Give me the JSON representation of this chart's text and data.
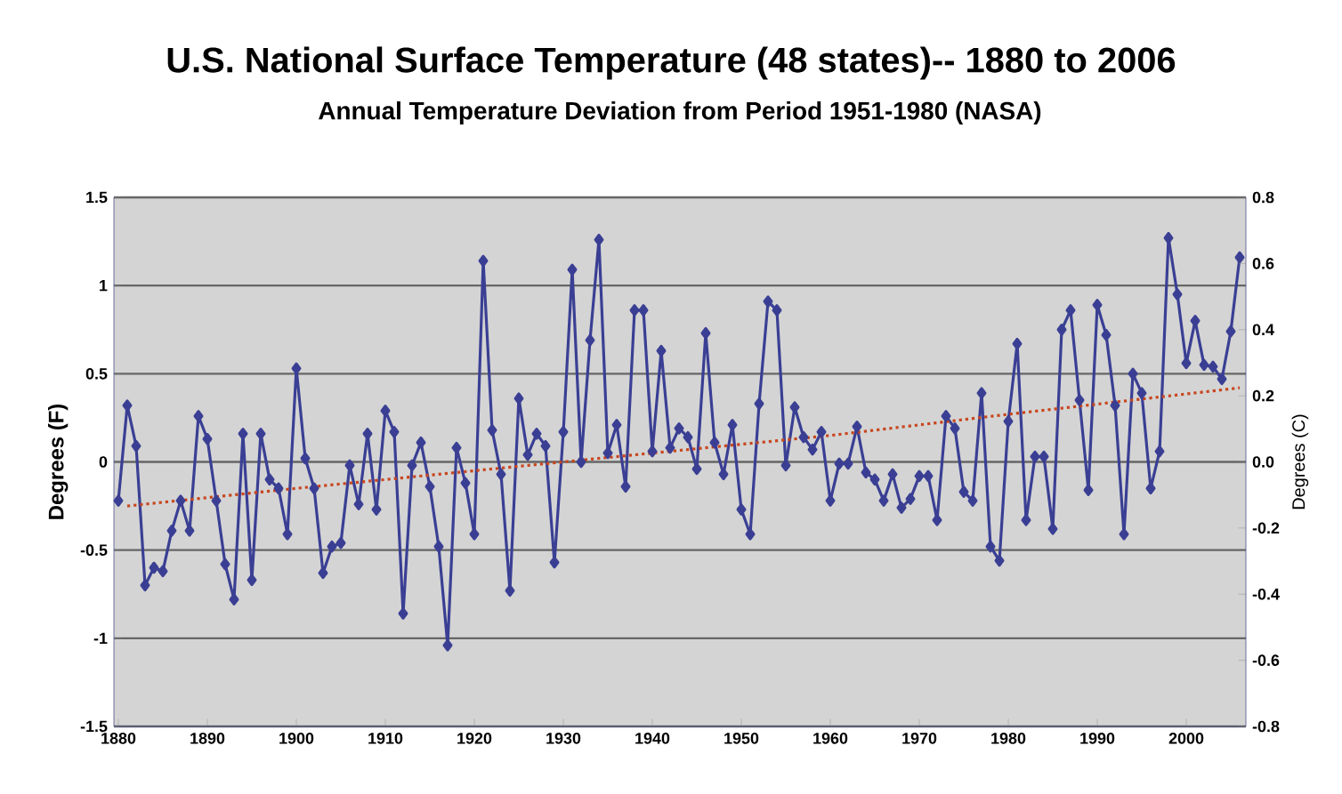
{
  "chart_data": {
    "type": "line",
    "title": "U.S. National Surface Temperature (48 states)-- 1880 to 2006",
    "subtitle": "Annual Temperature Deviation from Period 1951-1980 (NASA)",
    "ylabel": "Degrees (F)",
    "y2label": "Degrees (C)",
    "x": [
      1880,
      1881,
      1882,
      1883,
      1884,
      1885,
      1886,
      1887,
      1888,
      1889,
      1890,
      1891,
      1892,
      1893,
      1894,
      1895,
      1896,
      1897,
      1898,
      1899,
      1900,
      1901,
      1902,
      1903,
      1904,
      1905,
      1906,
      1907,
      1908,
      1909,
      1910,
      1911,
      1912,
      1913,
      1914,
      1915,
      1916,
      1917,
      1918,
      1919,
      1920,
      1921,
      1922,
      1923,
      1924,
      1925,
      1926,
      1927,
      1928,
      1929,
      1930,
      1931,
      1932,
      1933,
      1934,
      1935,
      1936,
      1937,
      1938,
      1939,
      1940,
      1941,
      1942,
      1943,
      1944,
      1945,
      1946,
      1947,
      1948,
      1949,
      1950,
      1951,
      1952,
      1953,
      1954,
      1955,
      1956,
      1957,
      1958,
      1959,
      1960,
      1961,
      1962,
      1963,
      1964,
      1965,
      1966,
      1967,
      1968,
      1969,
      1970,
      1971,
      1972,
      1973,
      1974,
      1975,
      1976,
      1977,
      1978,
      1979,
      1980,
      1981,
      1982,
      1983,
      1984,
      1985,
      1986,
      1987,
      1988,
      1989,
      1990,
      1991,
      1992,
      1993,
      1994,
      1995,
      1996,
      1997,
      1998,
      1999,
      2000,
      2001,
      2002,
      2003,
      2004,
      2005,
      2006
    ],
    "series": [
      {
        "color": "#3a3f94",
        "marker": "diamond",
        "line_style": "solid",
        "values": [
          -0.22,
          0.32,
          0.09,
          -0.7,
          -0.6,
          -0.62,
          -0.39,
          -0.22,
          -0.39,
          0.26,
          0.13,
          -0.22,
          -0.58,
          -0.78,
          0.16,
          -0.67,
          0.16,
          -0.1,
          -0.15,
          -0.41,
          0.53,
          0.02,
          -0.15,
          -0.63,
          -0.48,
          -0.46,
          -0.02,
          -0.24,
          0.16,
          -0.27,
          0.29,
          0.17,
          -0.86,
          -0.02,
          0.11,
          -0.14,
          -0.48,
          -1.04,
          0.08,
          -0.12,
          -0.41,
          1.14,
          0.18,
          -0.07,
          -0.73,
          0.36,
          0.04,
          0.16,
          0.09,
          -0.57,
          0.17,
          1.09,
          0.0,
          0.69,
          1.26,
          0.05,
          0.21,
          -0.14,
          0.86,
          0.86,
          0.06,
          0.63,
          0.08,
          0.19,
          0.14,
          -0.04,
          0.73,
          0.11,
          -0.07,
          0.21,
          -0.27,
          -0.41,
          0.33,
          0.91,
          0.86,
          -0.02,
          0.31,
          0.14,
          0.07,
          0.17,
          -0.22,
          -0.01,
          -0.01,
          0.2,
          -0.06,
          -0.1,
          -0.22,
          -0.07,
          -0.26,
          -0.21,
          -0.08,
          -0.08,
          -0.33,
          0.26,
          0.19,
          -0.17,
          -0.22,
          0.39,
          -0.48,
          -0.56,
          0.23,
          0.67,
          -0.33,
          0.03,
          0.03,
          -0.38,
          0.75,
          0.86,
          0.35,
          -0.16,
          0.89,
          0.72,
          0.32,
          -0.41,
          0.5,
          0.39,
          -0.15,
          0.06,
          1.27,
          0.95,
          0.56,
          0.8,
          0.55,
          0.54,
          0.47,
          0.74,
          1.16
        ]
      },
      {
        "type": "line",
        "color": "#c8461e",
        "marker": "none",
        "line_style": "dotted",
        "x": [
          1881,
          1900,
          1920,
          1940,
          1960,
          1980,
          2006
        ],
        "values": [
          -0.25,
          -0.15,
          -0.05,
          0.05,
          0.15,
          0.27,
          0.42
        ]
      }
    ],
    "xlim": [
      1879.5,
      2006.7
    ],
    "xticks": [
      1880,
      1890,
      1900,
      1910,
      1920,
      1930,
      1940,
      1950,
      1960,
      1970,
      1980,
      1990,
      2000
    ],
    "ylim": [
      -1.5,
      1.5
    ],
    "yticks": [
      -1.5,
      -1,
      -0.5,
      0,
      0.5,
      1,
      1.5
    ],
    "y2lim": [
      -0.8,
      0.8
    ],
    "y2ticks": [
      -0.8,
      -0.6,
      -0.4,
      -0.2,
      {
        "value": 0,
        "label": "0.0"
      },
      0.2,
      0.4,
      0.6,
      0.8
    ],
    "grid": "y"
  }
}
